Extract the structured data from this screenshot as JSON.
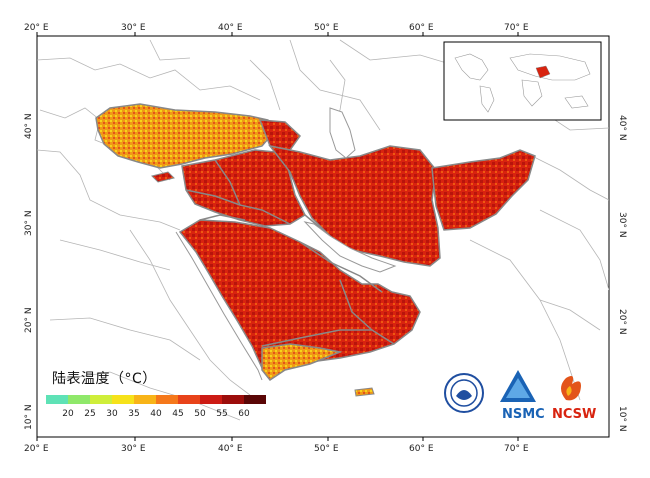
{
  "map": {
    "legend_title": "陆表温度（°C）",
    "legend_ticks": [
      "20",
      "25",
      "30",
      "35",
      "40",
      "45",
      "50",
      "55",
      "60"
    ],
    "legend_colors": [
      "#5ee2b6",
      "#8fe86a",
      "#cfee3a",
      "#f6e21a",
      "#f8b418",
      "#f5781b",
      "#e8431a",
      "#cc1b14",
      "#9c0d0b",
      "#5a0606"
    ],
    "lon_labels": [
      "20° E",
      "30° E",
      "40° E",
      "50° E",
      "60° E",
      "70° E"
    ],
    "lat_labels": [
      "10° N",
      "20° N",
      "30° N",
      "40° N"
    ],
    "logos": [
      "NSMC",
      "NCSW"
    ]
  }
}
